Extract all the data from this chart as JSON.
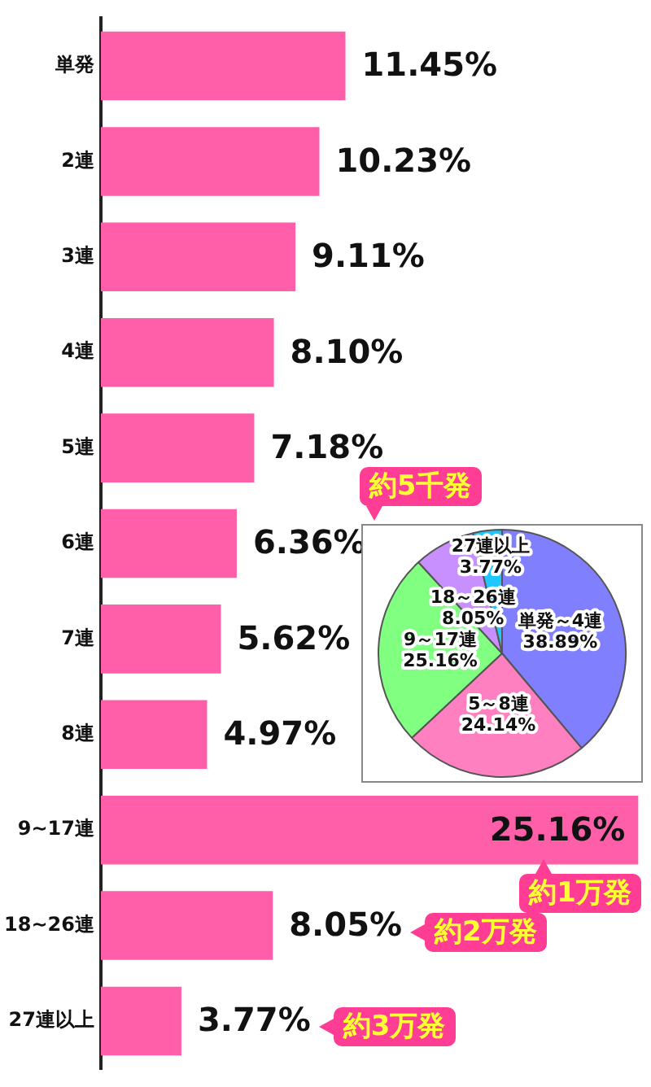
{
  "chart_data": [
    {
      "type": "bar",
      "orientation": "horizontal",
      "categories": [
        "単発",
        "2連",
        "3連",
        "4連",
        "5連",
        "6連",
        "7連",
        "8連",
        "9~17連",
        "18~26連",
        "27連以上"
      ],
      "values": [
        11.45,
        10.23,
        9.11,
        8.1,
        7.18,
        6.36,
        5.62,
        4.97,
        25.16,
        8.05,
        3.77
      ],
      "color": "#ff5fa8",
      "value_labels": [
        "11.45%",
        "10.23%",
        "9.11%",
        "8.10%",
        "7.18%",
        "6.36%",
        "5.62%",
        "4.97%",
        "25.16%",
        "8.05%",
        "3.77%"
      ],
      "xlim": [
        0,
        25.3
      ],
      "tick_labels": "y",
      "grid": false,
      "annotations": [
        "約5千発",
        "約1万発",
        "約2万発",
        "約3万発"
      ]
    },
    {
      "type": "pie",
      "categories": [
        "単発～4連",
        "5～8連",
        "9～17連",
        "18～26連",
        "27連以上"
      ],
      "values": [
        38.89,
        24.14,
        25.16,
        8.05,
        3.77
      ],
      "colors": [
        "#8080ff",
        "#ff80c0",
        "#80ff80",
        "#c890ff",
        "#1ec8ff"
      ],
      "value_labels": [
        "38.89%",
        "24.14%",
        "25.16%",
        "8.05%",
        "3.77%"
      ]
    }
  ]
}
